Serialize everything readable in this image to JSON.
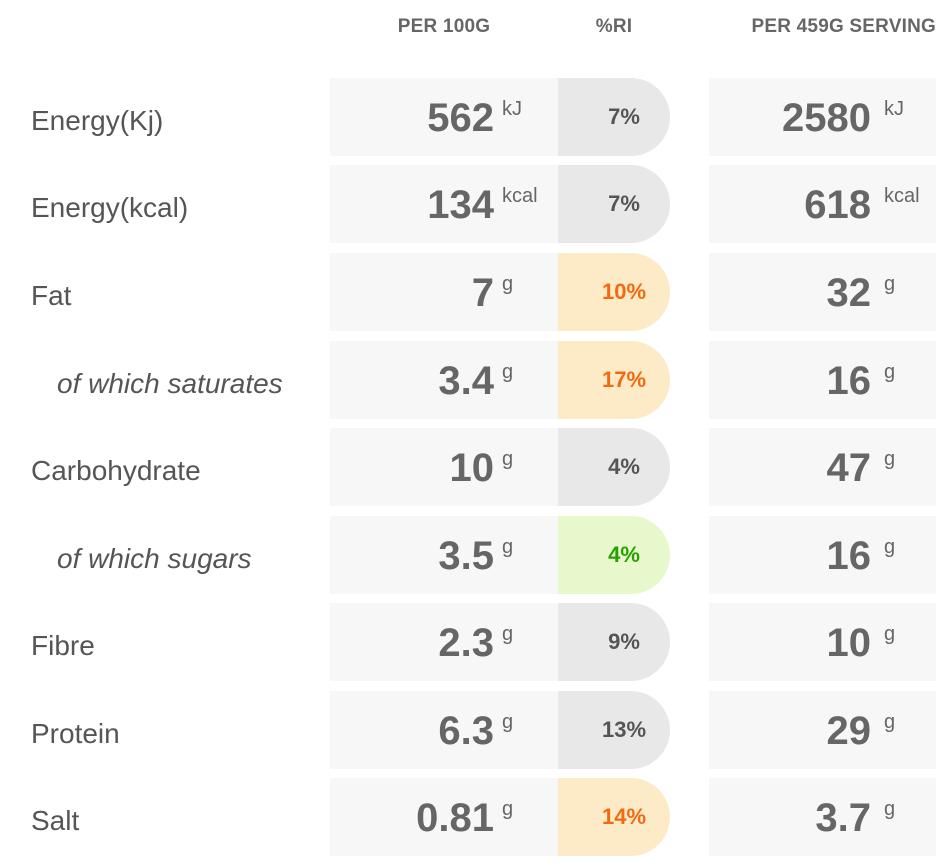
{
  "headers": {
    "per100": "PER 100G",
    "ri": "%RI",
    "serving": "PER 459G SERVING"
  },
  "colors": {
    "neutral_bg": "#e8e8e8",
    "amber_bg": "#fdebc8",
    "amber_text": "#f26a10",
    "green_bg": "#e7f8cc",
    "green_text": "#2aa000"
  },
  "rows": [
    {
      "label": "Energy(Kj)",
      "per100": "562",
      "unit": "kJ",
      "ri": "7%",
      "serving": "2580",
      "serving_unit": "kJ",
      "level": "neutral"
    },
    {
      "label": "Energy(kcal)",
      "per100": "134",
      "unit": "kcal",
      "ri": "7%",
      "serving": "618",
      "serving_unit": "kcal",
      "level": "neutral"
    },
    {
      "label": "Fat",
      "per100": "7",
      "unit": "g",
      "ri": "10%",
      "serving": "32",
      "serving_unit": "g",
      "level": "amber"
    },
    {
      "label": "of which saturates",
      "per100": "3.4",
      "unit": "g",
      "ri": "17%",
      "serving": "16",
      "serving_unit": "g",
      "level": "amber"
    },
    {
      "label": "Carbohydrate",
      "per100": "10",
      "unit": "g",
      "ri": "4%",
      "serving": "47",
      "serving_unit": "g",
      "level": "neutral"
    },
    {
      "label": "of which sugars",
      "per100": "3.5",
      "unit": "g",
      "ri": "4%",
      "serving": "16",
      "serving_unit": "g",
      "level": "green"
    },
    {
      "label": "Fibre",
      "per100": "2.3",
      "unit": "g",
      "ri": "9%",
      "serving": "10",
      "serving_unit": "g",
      "level": "neutral"
    },
    {
      "label": "Protein",
      "per100": "6.3",
      "unit": "g",
      "ri": "13%",
      "serving": "29",
      "serving_unit": "g",
      "level": "neutral"
    },
    {
      "label": "Salt",
      "per100": "0.81",
      "unit": "g",
      "ri": "14%",
      "serving": "3.7",
      "serving_unit": "g",
      "level": "amber"
    }
  ]
}
